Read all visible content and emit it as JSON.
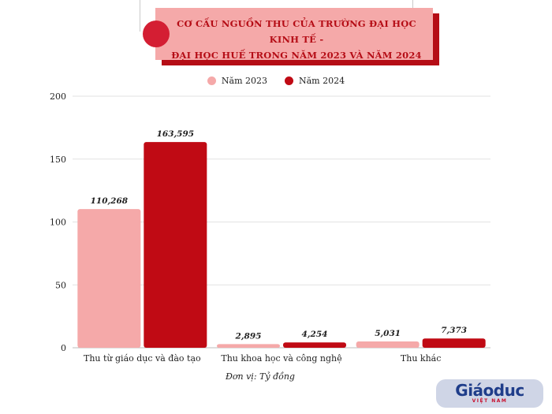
{
  "title_line1": "CƠ CẤU NGUỒN THU CỦA TRƯỜNG ĐẠI HỌC KINH TẾ -",
  "title_line2": "ĐẠI HỌC HUẾ TRONG NĂM 2023 VÀ NĂM 2024",
  "unit_note": "Đơn vị: Tỷ đồng",
  "logo": {
    "main": "Giáoduc",
    "sub": "VIỆT NAM"
  },
  "colors": {
    "series_2023": "#f5a9a9",
    "series_2024": "#c00a14",
    "title_bg": "#f5a9a9",
    "accent": "#d41e33"
  },
  "chart_data": {
    "type": "bar",
    "categories": [
      "Thu từ giáo dục và đào tạo",
      "Thu khoa học và công nghệ",
      "Thu khác"
    ],
    "series": [
      {
        "name": "Năm 2023",
        "values": [
          110.268,
          2.895,
          5.031
        ],
        "labels": [
          "110,268",
          "2,895",
          "5,031"
        ]
      },
      {
        "name": "Năm 2024",
        "values": [
          163.595,
          4.254,
          7.373
        ],
        "labels": [
          "163,595",
          "4,254",
          "7,373"
        ]
      }
    ],
    "yticks": [
      0,
      50,
      100,
      150,
      200
    ],
    "ylim": [
      0,
      200
    ],
    "grid": true,
    "legend_position": "top-center"
  }
}
